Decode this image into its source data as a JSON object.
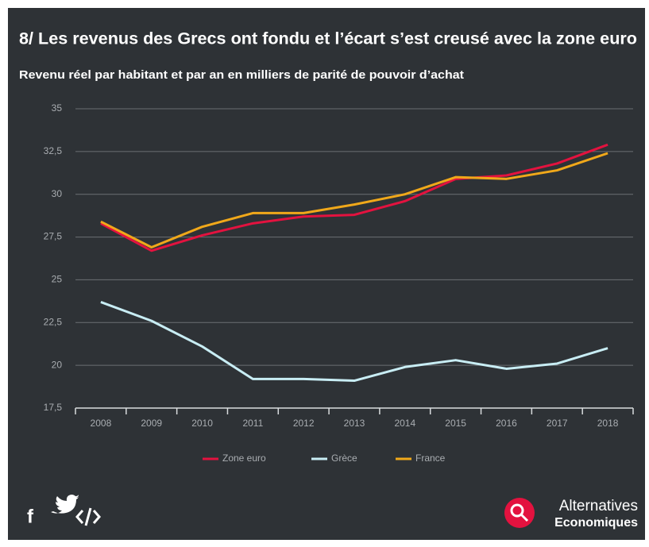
{
  "chart_data": {
    "type": "line",
    "title": "8/ Les revenus des Grecs ont fondu et l’écart s’est creusé avec la zone euro",
    "subtitle": "Revenu réel par habitant et par an en milliers de parité de pouvoir d’achat",
    "categories": [
      "2008",
      "2009",
      "2010",
      "2011",
      "2012",
      "2013",
      "2014",
      "2015",
      "2016",
      "2017",
      "2018"
    ],
    "series": [
      {
        "name": "Zone euro",
        "color": "#e3123f",
        "values": [
          28.3,
          26.7,
          27.6,
          28.3,
          28.7,
          28.8,
          29.6,
          30.9,
          31.1,
          31.8,
          32.9
        ]
      },
      {
        "name": "Grèce",
        "color": "#c8edf4",
        "values": [
          23.7,
          22.6,
          21.1,
          19.2,
          19.2,
          19.1,
          19.9,
          20.3,
          19.8,
          20.1,
          21.0
        ]
      },
      {
        "name": "France",
        "color": "#f0a81a",
        "values": [
          28.4,
          26.9,
          28.1,
          28.9,
          28.9,
          29.4,
          30.0,
          31.0,
          30.9,
          31.4,
          32.4
        ]
      }
    ],
    "ylim": [
      17.5,
      35
    ],
    "yticks": [
      {
        "value": 17.5,
        "label": "17,5"
      },
      20,
      {
        "value": 22.5,
        "label": "22,5"
      },
      25,
      {
        "value": 27.5,
        "label": "27,5"
      },
      30,
      {
        "value": 32.5,
        "label": "32,5"
      },
      35
    ],
    "grid": true,
    "legend": "bottom",
    "brand": [
      "Alternatives",
      "Economiques"
    ]
  }
}
